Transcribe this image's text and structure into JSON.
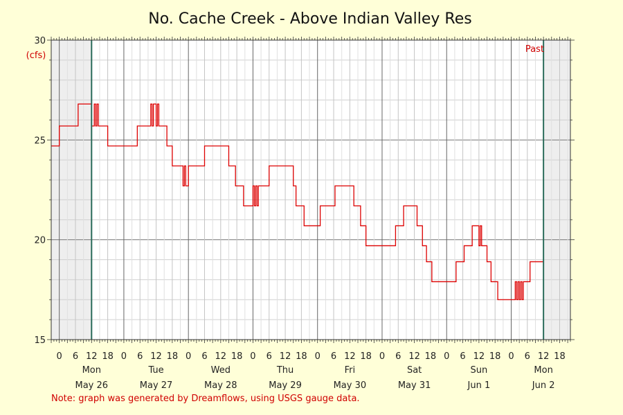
{
  "chart_data": {
    "type": "line",
    "title": "No. Cache Creek - Above Indian Valley Res",
    "ylabel": "(cfs)",
    "ylim": [
      15,
      30
    ],
    "y_ticks": [
      15,
      20,
      25,
      30
    ],
    "grid": true,
    "colors": {
      "line": "#dd0000",
      "marker": "#2a6b5a",
      "shade": "#eeeeee",
      "background": "#ffffd8",
      "plot_bg": "#ffffff"
    },
    "x_start": "2025-05-25 21:00",
    "x_end": "2025-06-02 22:00",
    "x_hour_labels": [
      "0",
      "6",
      "12",
      "18"
    ],
    "days": [
      {
        "dow": "Mon",
        "date": "May 26"
      },
      {
        "dow": "Tue",
        "date": "May 27"
      },
      {
        "dow": "Wed",
        "date": "May 28"
      },
      {
        "dow": "Thu",
        "date": "May 29"
      },
      {
        "dow": "Fri",
        "date": "May 30"
      },
      {
        "dow": "Sat",
        "date": "May 31"
      },
      {
        "dow": "Sun",
        "date": "Jun 1"
      },
      {
        "dow": "Mon",
        "date": "Jun 2"
      }
    ],
    "past_marker": {
      "label": "Past",
      "time": "2025-06-02 12:00"
    },
    "data_start_marker": "2025-05-26 12:00",
    "series": [
      {
        "values": [
          [
            "2025-05-25 21:00",
            24.7
          ],
          [
            "2025-05-26 00:00",
            25.7
          ],
          [
            "2025-05-26 07:00",
            26.8
          ],
          [
            "2025-05-26 12:00",
            25.7
          ],
          [
            "2025-05-26 13:00",
            26.8
          ],
          [
            "2025-05-26 13:30",
            25.7
          ],
          [
            "2025-05-26 14:00",
            26.8
          ],
          [
            "2025-05-26 14:30",
            25.7
          ],
          [
            "2025-05-26 18:00",
            24.7
          ],
          [
            "2025-05-27 05:00",
            25.7
          ],
          [
            "2025-05-27 10:00",
            26.8
          ],
          [
            "2025-05-27 10:30",
            25.7
          ],
          [
            "2025-05-27 11:00",
            26.8
          ],
          [
            "2025-05-27 12:00",
            25.7
          ],
          [
            "2025-05-27 12:30",
            26.8
          ],
          [
            "2025-05-27 13:00",
            25.7
          ],
          [
            "2025-05-27 16:00",
            24.7
          ],
          [
            "2025-05-27 18:00",
            23.7
          ],
          [
            "2025-05-27 22:00",
            22.7
          ],
          [
            "2025-05-27 22:30",
            23.7
          ],
          [
            "2025-05-27 23:00",
            22.7
          ],
          [
            "2025-05-28 00:00",
            23.7
          ],
          [
            "2025-05-28 06:00",
            24.7
          ],
          [
            "2025-05-28 15:00",
            23.7
          ],
          [
            "2025-05-28 17:30",
            22.7
          ],
          [
            "2025-05-28 20:30",
            21.7
          ],
          [
            "2025-05-29 00:00",
            22.7
          ],
          [
            "2025-05-29 00:30",
            21.7
          ],
          [
            "2025-05-29 01:00",
            22.7
          ],
          [
            "2025-05-29 01:30",
            21.7
          ],
          [
            "2025-05-29 02:00",
            22.7
          ],
          [
            "2025-05-29 06:00",
            23.7
          ],
          [
            "2025-05-29 15:00",
            22.7
          ],
          [
            "2025-05-29 16:00",
            21.7
          ],
          [
            "2025-05-29 19:00",
            20.7
          ],
          [
            "2025-05-30 01:00",
            21.7
          ],
          [
            "2025-05-30 06:30",
            22.7
          ],
          [
            "2025-05-30 13:30",
            21.7
          ],
          [
            "2025-05-30 16:00",
            20.7
          ],
          [
            "2025-05-30 18:00",
            19.7
          ],
          [
            "2025-05-31 05:00",
            20.7
          ],
          [
            "2025-05-31 08:00",
            21.7
          ],
          [
            "2025-05-31 13:00",
            20.7
          ],
          [
            "2025-05-31 15:00",
            19.7
          ],
          [
            "2025-05-31 16:30",
            18.9
          ],
          [
            "2025-05-31 18:30",
            17.9
          ],
          [
            "2025-06-01 03:30",
            18.9
          ],
          [
            "2025-06-01 06:30",
            19.7
          ],
          [
            "2025-06-01 09:30",
            20.7
          ],
          [
            "2025-06-01 12:00",
            19.7
          ],
          [
            "2025-06-01 12:30",
            20.7
          ],
          [
            "2025-06-01 13:00",
            19.7
          ],
          [
            "2025-06-01 15:00",
            18.9
          ],
          [
            "2025-06-01 16:30",
            17.9
          ],
          [
            "2025-06-01 19:00",
            17.0
          ],
          [
            "2025-06-02 01:30",
            17.9
          ],
          [
            "2025-06-02 02:00",
            17.0
          ],
          [
            "2025-06-02 02:30",
            17.9
          ],
          [
            "2025-06-02 03:00",
            17.0
          ],
          [
            "2025-06-02 03:30",
            17.9
          ],
          [
            "2025-06-02 04:00",
            17.0
          ],
          [
            "2025-06-02 04:30",
            17.9
          ],
          [
            "2025-06-02 07:00",
            18.9
          ],
          [
            "2025-06-02 12:00",
            18.9
          ]
        ]
      }
    ]
  },
  "note": "Note: graph was generated by Dreamflows, using USGS gauge data."
}
